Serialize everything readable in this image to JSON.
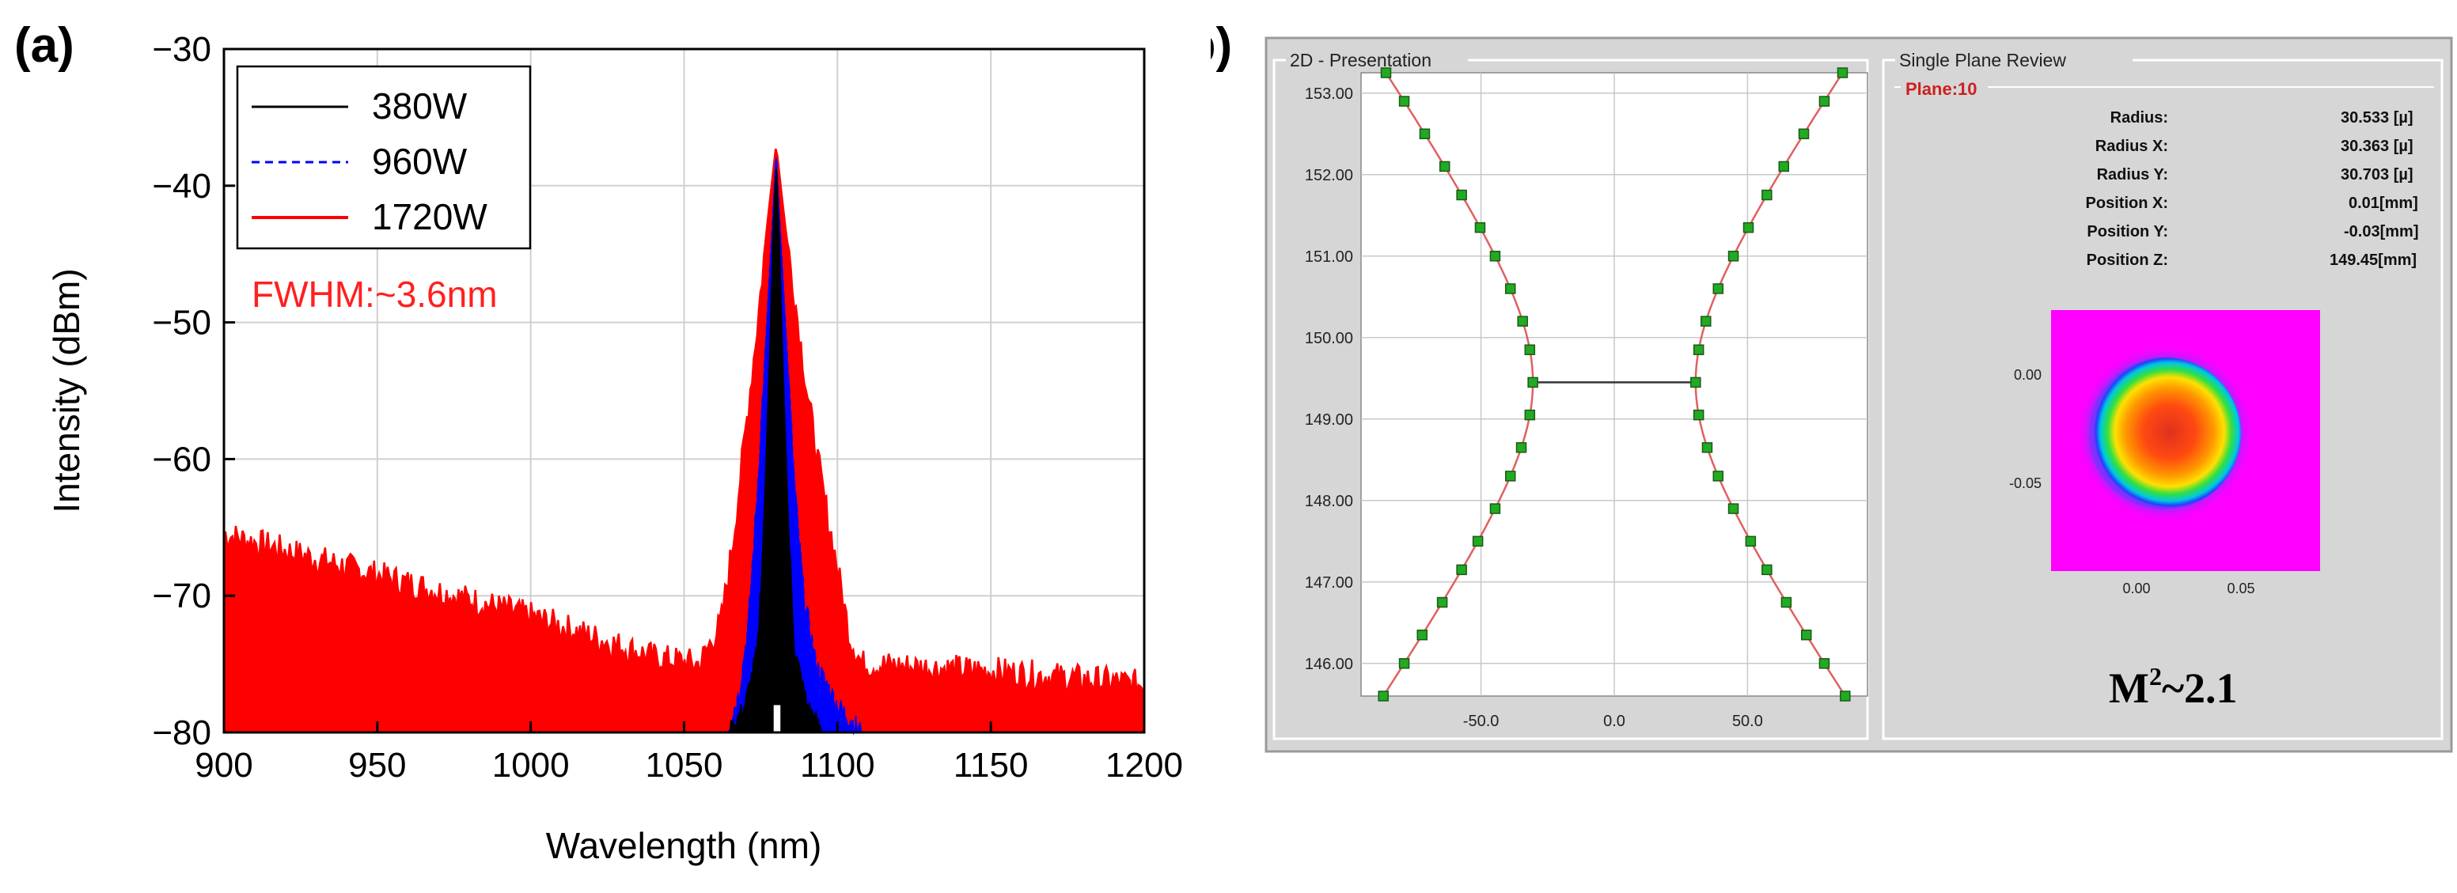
{
  "panel_a": {
    "label": "(a)"
  },
  "panel_b": {
    "label": "(b)"
  },
  "colors": {
    "s380": "#000000",
    "s960": "#0000ff",
    "s1720": "#ff0000",
    "annotation": "#ff2020",
    "grid": "#d0d0d0",
    "app_bg": "#d6d6d6",
    "plot_bg": "#ffffff",
    "fit": "#e06060",
    "marker": "#22aa22",
    "plane": "#cc2020"
  },
  "chart_data": [
    {
      "type": "line",
      "title": "",
      "xlabel": "Wavelength (nm)",
      "ylabel": "Intensity (dBm)",
      "xlim": [
        900,
        1200
      ],
      "ylim": [
        -80,
        -30
      ],
      "xticks": [
        900,
        950,
        1000,
        1050,
        1100,
        1150,
        1200
      ],
      "yticks": [
        -80,
        -70,
        -60,
        -50,
        -40,
        -30
      ],
      "grid": true,
      "legend_position": "top-left",
      "annotation": "FWHM:~3.6nm",
      "series": [
        {
          "name": "380W",
          "style": "solid",
          "color": "#000000",
          "peak": [
            1080,
            -38.5
          ],
          "points": [
            [
              1065,
              -80
            ],
            [
              1070,
              -78
            ],
            [
              1074,
              -74
            ],
            [
              1076,
              -65
            ],
            [
              1078,
              -52
            ],
            [
              1079,
              -44
            ],
            [
              1080,
              -38.5
            ],
            [
              1081,
              -44
            ],
            [
              1082,
              -52
            ],
            [
              1084,
              -65
            ],
            [
              1086,
              -74
            ],
            [
              1090,
              -78
            ],
            [
              1095,
              -80
            ]
          ]
        },
        {
          "name": "960W",
          "style": "dashed",
          "color": "#0000ff",
          "peak": [
            1080,
            -37.5
          ],
          "points": [
            [
              1064,
              -80
            ],
            [
              1068,
              -77
            ],
            [
              1071,
              -72
            ],
            [
              1074,
              -62
            ],
            [
              1077,
              -50
            ],
            [
              1079,
              -42
            ],
            [
              1080,
              -37.5
            ],
            [
              1081,
              -42
            ],
            [
              1083,
              -50
            ],
            [
              1086,
              -62
            ],
            [
              1089,
              -70
            ],
            [
              1093,
              -75
            ],
            [
              1100,
              -78
            ],
            [
              1108,
              -80
            ]
          ]
        },
        {
          "name": "1720W",
          "style": "solid",
          "color": "#ff0000",
          "peak": [
            1080,
            -37
          ],
          "points": [
            [
              900,
              -65.5
            ],
            [
              950,
              -68.5
            ],
            [
              1000,
              -71.5
            ],
            [
              1040,
              -74.5
            ],
            [
              1055,
              -75
            ],
            [
              1062,
              -72
            ],
            [
              1066,
              -66
            ],
            [
              1070,
              -58
            ],
            [
              1074,
              -50
            ],
            [
              1077,
              -43
            ],
            [
              1080,
              -37
            ],
            [
              1083,
              -43
            ],
            [
              1086,
              -48
            ],
            [
              1090,
              -55
            ],
            [
              1095,
              -62
            ],
            [
              1100,
              -68
            ],
            [
              1104,
              -73
            ],
            [
              1108,
              -75
            ],
            [
              1150,
              -75.5
            ],
            [
              1200,
              -76.5
            ]
          ]
        }
      ]
    },
    {
      "type": "scatter",
      "title": "2D - Presentation",
      "xlabel": "",
      "ylabel": "",
      "xlim": [
        -95,
        95
      ],
      "ylim": [
        145.6,
        153.25
      ],
      "xticks": [
        "-50.0",
        "0.0",
        "50.0"
      ],
      "xtick_values": [
        -50,
        0,
        50
      ],
      "yticks": [
        "146.00",
        "147.00",
        "148.00",
        "149.00",
        "150.00",
        "151.00",
        "152.00",
        "153.00"
      ],
      "ytick_values": [
        146,
        147,
        148,
        149,
        150,
        151,
        152,
        153
      ],
      "waist_z": 149.45,
      "waist_radius": 30.5,
      "rayleigh_fit": {
        "w0": 30.533,
        "zR": 1.45
      },
      "series": [
        {
          "name": "radius",
          "z": [
            145.6,
            146.0,
            146.35,
            146.75,
            147.15,
            147.5,
            147.9,
            148.3,
            148.65,
            149.05,
            149.45,
            149.85,
            150.2,
            150.6,
            151.0,
            151.35,
            151.75,
            152.1,
            152.5,
            152.9,
            153.25
          ]
        }
      ]
    }
  ],
  "review": {
    "header": "Single Plane Review",
    "plane": "Plane:10",
    "rows": [
      {
        "label": "Radius:",
        "value": "30.533 [µ]"
      },
      {
        "label": "Radius X:",
        "value": "30.363 [µ]"
      },
      {
        "label": "Radius Y:",
        "value": "30.703 [µ]"
      },
      {
        "label": "Position X:",
        "value": "0.01[mm]"
      },
      {
        "label": "Position Y:",
        "value": "-0.03[mm]"
      },
      {
        "label": "Position Z:",
        "value": "149.45[mm]"
      }
    ],
    "beam_yticks": [
      "0.00",
      "-0.05"
    ],
    "beam_xticks": [
      "0.00",
      "0.05"
    ],
    "m2_letter": "M",
    "m2_exp": "2",
    "m2_value": "~2.1"
  }
}
